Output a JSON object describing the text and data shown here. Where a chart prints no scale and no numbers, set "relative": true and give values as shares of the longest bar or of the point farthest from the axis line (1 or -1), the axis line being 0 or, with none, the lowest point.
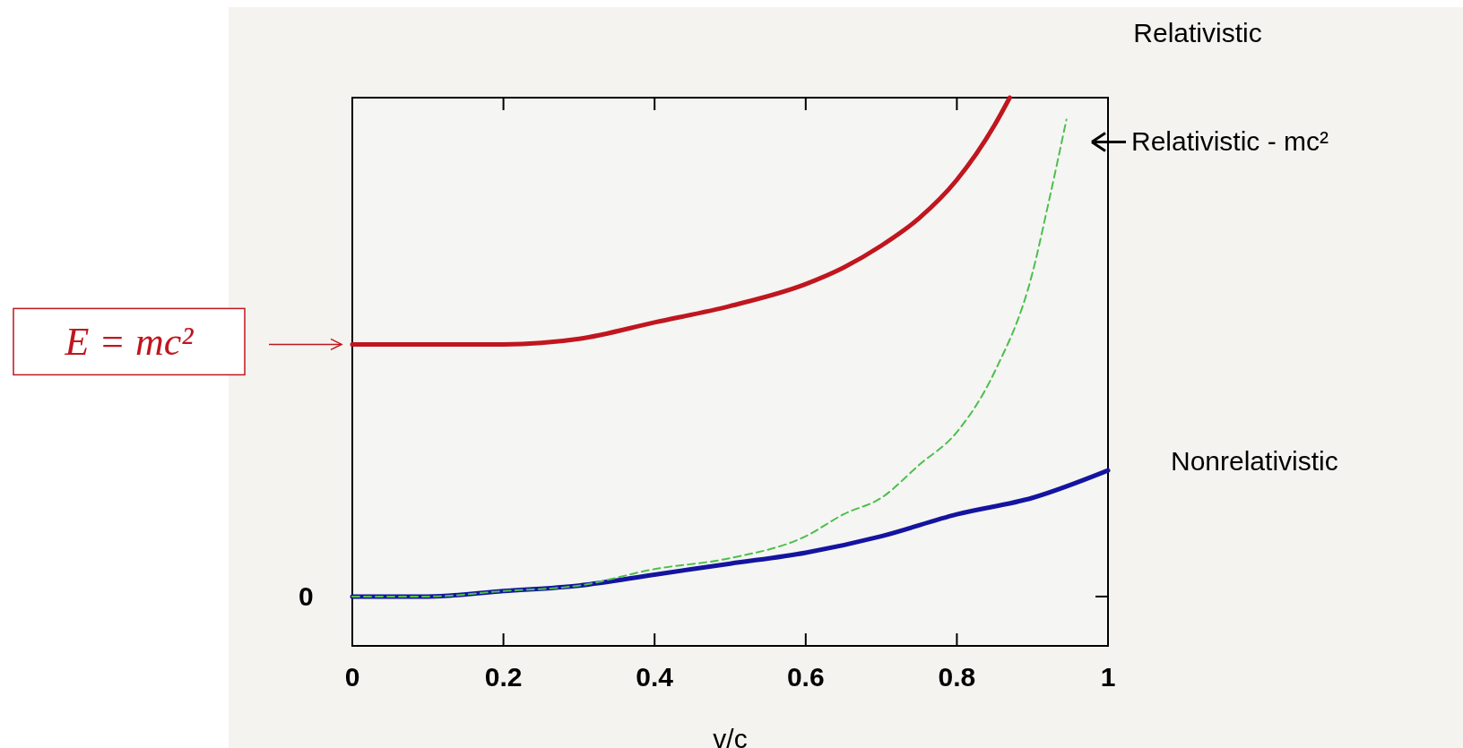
{
  "chart_data": {
    "type": "line",
    "relative": true,
    "xlabel": "v/c",
    "xlim": [
      0,
      1
    ],
    "xticks": [
      0,
      0.2,
      0.4,
      0.6,
      0.8,
      1
    ],
    "series": [
      {
        "name": "Relativistic",
        "color": "#c0161f",
        "x": [
          0,
          0.1,
          0.2,
          0.3,
          0.4,
          0.5,
          0.6,
          0.65,
          0.7,
          0.75,
          0.8,
          0.85,
          0.87
        ],
        "values": [
          0.55,
          0.55,
          0.55,
          0.56,
          0.59,
          0.62,
          0.66,
          0.69,
          0.73,
          0.78,
          0.85,
          0.95,
          1.0
        ]
      },
      {
        "name": "Relativistic - mc²",
        "color": "#4cbf4c",
        "line_style": "dashed",
        "x": [
          0,
          0.1,
          0.2,
          0.3,
          0.4,
          0.5,
          0.6,
          0.65,
          0.7,
          0.75,
          0.8,
          0.85,
          0.9,
          0.92,
          0.945
        ],
        "values": [
          0.09,
          0.09,
          0.1,
          0.11,
          0.14,
          0.16,
          0.2,
          0.24,
          0.27,
          0.33,
          0.39,
          0.5,
          0.68,
          0.8,
          0.96
        ]
      },
      {
        "name": "Nonrelativistic",
        "color": "#1414a0",
        "x": [
          0,
          0.1,
          0.2,
          0.3,
          0.4,
          0.5,
          0.6,
          0.7,
          0.8,
          0.9,
          1
        ],
        "values": [
          0.09,
          0.09,
          0.1,
          0.11,
          0.13,
          0.15,
          0.17,
          0.2,
          0.24,
          0.27,
          0.32
        ]
      }
    ],
    "annotations": [
      "E = mc²",
      "0"
    ]
  }
}
